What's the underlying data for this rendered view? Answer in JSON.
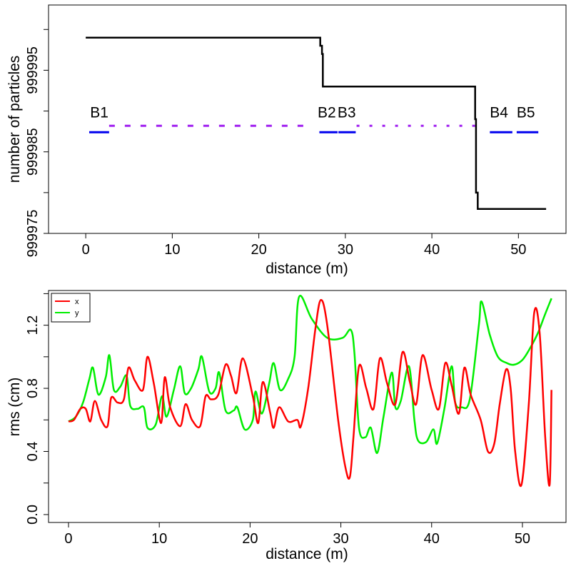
{
  "chart_data": [
    {
      "type": "line",
      "xlabel": "distance (m)",
      "ylabel": "number of particles",
      "xlim": [
        -4.3,
        55.5
      ],
      "ylim": [
        999975.0,
        1000003.0
      ],
      "xticks": [
        0,
        10,
        20,
        30,
        40,
        50
      ],
      "yticks": [
        999975,
        999985,
        999995
      ],
      "series": [
        {
          "name": "particles",
          "color": "#000000",
          "type": "step",
          "x": [
            0,
            27.1,
            27.1,
            27.3,
            27.3,
            27.4,
            27.4,
            45.0,
            45.0,
            45.1,
            45.1,
            45.3,
            45.3,
            53.2
          ],
          "y": [
            999999,
            999999,
            999998,
            999998,
            999997,
            999997,
            999993,
            999993,
            999989,
            999989,
            999980,
            999980,
            999978,
            999978
          ]
        }
      ],
      "beamline": {
        "level": 999987.4,
        "segments": [
          {
            "x0": 0.4,
            "x1": 2.7,
            "color": "#0000ee",
            "style": "solid"
          },
          {
            "x0": 27.0,
            "x1": 29.1,
            "color": "#0000ee",
            "style": "solid"
          },
          {
            "x0": 29.2,
            "x1": 31.2,
            "color": "#0000ee",
            "style": "solid"
          },
          {
            "x0": 46.7,
            "x1": 49.3,
            "color": "#0000ee",
            "style": "solid"
          },
          {
            "x0": 49.8,
            "x1": 52.3,
            "color": "#0000ee",
            "style": "solid"
          }
        ],
        "drifts": [
          {
            "x0": 2.7,
            "x1": 25.6,
            "color": "#a020f0",
            "style": "dashed"
          },
          {
            "x0": 31.3,
            "x1": 45.2,
            "color": "#a020f0",
            "style": "dotted"
          }
        ]
      },
      "annotations": [
        {
          "text": "B1",
          "x": 0.5,
          "y": 999989.2
        },
        {
          "text": "B2",
          "x": 26.8,
          "y": 999989.2
        },
        {
          "text": "B3",
          "x": 29.1,
          "y": 999989.2
        },
        {
          "text": "B4",
          "x": 46.7,
          "y": 999989.2
        },
        {
          "text": "B5",
          "x": 49.8,
          "y": 999989.2
        }
      ]
    },
    {
      "type": "line",
      "xlabel": "distance (m)",
      "ylabel": "rms (cm)",
      "xlim": [
        -2.2,
        54.8
      ],
      "ylim": [
        -0.05,
        1.42
      ],
      "xticks": [
        0,
        10,
        20,
        30,
        40,
        50
      ],
      "yticks": [
        0.0,
        0.4,
        0.8,
        1.2
      ],
      "legend": {
        "position": "top-left",
        "entries": [
          "x",
          "y"
        ]
      },
      "series": [
        {
          "name": "x",
          "color": "#ff0000",
          "x": [
            0,
            0.6,
            1.3,
            1.9,
            2.4,
            2.9,
            3.6,
            4.3,
            4.7,
            5.4,
            6.1,
            6.6,
            7.3,
            8.2,
            8.7,
            9.4,
            10.2,
            10.6,
            11.2,
            12.3,
            12.9,
            13.6,
            14.5,
            15.1,
            15.7,
            16.5,
            17.3,
            17.9,
            18.5,
            19.2,
            20.3,
            20.9,
            21.4,
            22.2,
            22.6,
            23.2,
            24.2,
            25.2,
            25.6,
            26.4,
            27.2,
            27.8,
            28.5,
            29.7,
            30.5,
            31.0,
            31.4,
            32.0,
            32.8,
            33.6,
            34.3,
            35.1,
            36.0,
            36.8,
            37.6,
            38.3,
            39.0,
            40.0,
            40.8,
            41.5,
            42.2,
            43.0,
            43.6,
            44.3,
            45.4,
            46.2,
            46.9,
            47.5,
            48.2,
            48.7,
            49.2,
            49.9,
            50.7,
            51.3,
            51.9,
            52.5,
            53.0,
            53.2
          ],
          "y": [
            0.59,
            0.6,
            0.67,
            0.67,
            0.59,
            0.72,
            0.6,
            0.56,
            0.74,
            0.71,
            0.73,
            0.93,
            0.85,
            0.79,
            1.0,
            0.83,
            0.58,
            0.87,
            0.68,
            0.56,
            0.7,
            0.6,
            0.56,
            0.75,
            0.73,
            0.76,
            0.95,
            0.88,
            0.77,
            0.99,
            0.75,
            0.58,
            0.84,
            0.65,
            0.55,
            0.68,
            0.59,
            0.6,
            0.56,
            0.8,
            1.18,
            1.36,
            1.2,
            0.6,
            0.3,
            0.24,
            0.5,
            0.94,
            0.8,
            0.67,
            0.99,
            0.83,
            0.7,
            1.03,
            0.84,
            0.7,
            1.01,
            0.79,
            0.67,
            0.96,
            0.82,
            0.64,
            0.93,
            0.76,
            0.6,
            0.4,
            0.45,
            0.7,
            0.92,
            0.8,
            0.4,
            0.19,
            0.7,
            1.28,
            1.15,
            0.5,
            0.19,
            0.79
          ]
        },
        {
          "name": "y",
          "color": "#00ee00",
          "x": [
            0,
            0.8,
            1.6,
            2.3,
            2.7,
            3.3,
            4.1,
            4.5,
            5.0,
            5.7,
            6.4,
            6.8,
            7.6,
            8.3,
            8.7,
            9.6,
            10.3,
            10.8,
            11.6,
            12.3,
            12.8,
            13.5,
            14.3,
            14.7,
            15.5,
            16.2,
            16.6,
            17.3,
            18.2,
            18.6,
            19.4,
            20.3,
            20.6,
            21.3,
            22.1,
            22.6,
            23.3,
            24.2,
            24.9,
            25.4,
            26.8,
            28.5,
            30.2,
            31.1,
            31.5,
            32.0,
            32.7,
            33.3,
            34.0,
            34.7,
            35.6,
            36.0,
            36.6,
            37.5,
            38.1,
            38.5,
            39.4,
            40.2,
            40.6,
            41.4,
            42.2,
            42.6,
            43.3,
            44.2,
            45.2,
            45.5,
            46.4,
            47.3,
            48.3,
            49.1,
            50.0,
            50.8,
            51.7,
            52.5,
            53.2
          ],
          "y": [
            0.59,
            0.62,
            0.71,
            0.86,
            0.93,
            0.76,
            0.87,
            1.01,
            0.79,
            0.81,
            0.88,
            0.69,
            0.67,
            0.68,
            0.55,
            0.57,
            0.75,
            0.62,
            0.79,
            0.94,
            0.77,
            0.8,
            0.92,
            1.0,
            0.78,
            0.8,
            0.9,
            0.66,
            0.66,
            0.68,
            0.54,
            0.6,
            0.78,
            0.64,
            0.83,
            0.96,
            0.79,
            0.86,
            1.0,
            1.38,
            1.24,
            1.12,
            1.12,
            1.17,
            1.02,
            0.55,
            0.49,
            0.55,
            0.39,
            0.62,
            0.9,
            0.68,
            0.72,
            0.94,
            0.6,
            0.47,
            0.46,
            0.54,
            0.45,
            0.67,
            0.94,
            0.71,
            0.68,
            0.73,
            1.2,
            1.35,
            1.14,
            1.0,
            0.96,
            0.95,
            0.98,
            1.05,
            1.15,
            1.27,
            1.37
          ]
        }
      ]
    }
  ]
}
